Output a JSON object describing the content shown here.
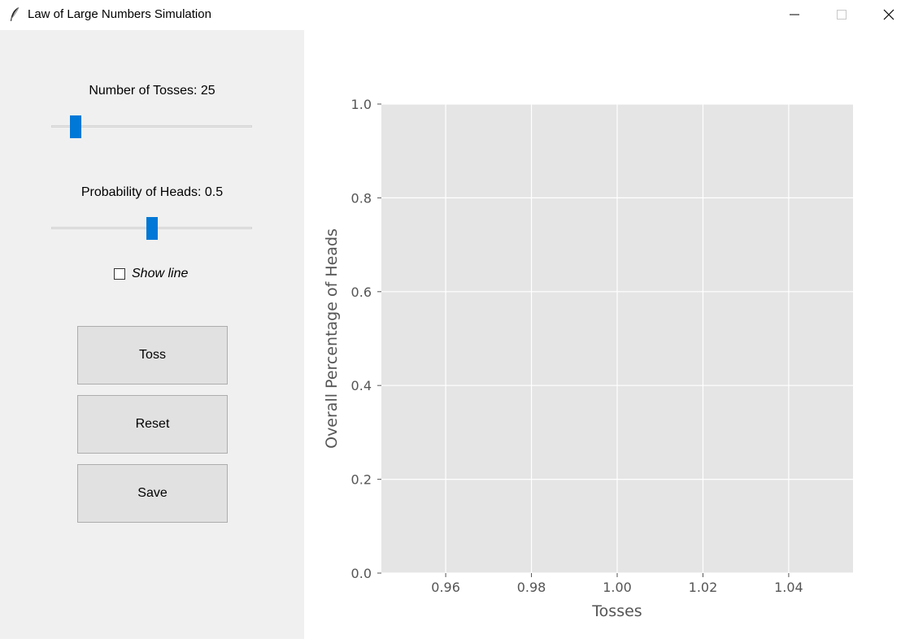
{
  "window": {
    "title": "Law of Large Numbers Simulation",
    "icon": "feather-icon"
  },
  "controls": {
    "tosses_label": "Number of Tosses: 25",
    "tosses_slider_fraction": 0.1,
    "probability_label": "Probability of Heads: 0.5",
    "probability_slider_fraction": 0.5,
    "show_line_label": "Show line",
    "show_line_checked": false,
    "toss_button": "Toss",
    "reset_button": "Reset",
    "save_button": "Save"
  },
  "chart_data": {
    "type": "scatter",
    "xlabel": "Tosses",
    "ylabel": "Overall Percentage of Heads",
    "xlim": [
      0.945,
      1.055
    ],
    "ylim": [
      0.0,
      1.0
    ],
    "xticks": [
      "0.96",
      "0.98",
      "1.00",
      "1.02",
      "1.04"
    ],
    "xtick_values": [
      0.96,
      0.98,
      1.0,
      1.02,
      1.04
    ],
    "yticks": [
      "0.0",
      "0.2",
      "0.4",
      "0.6",
      "0.8",
      "1.0"
    ],
    "ytick_values": [
      0.0,
      0.2,
      0.4,
      0.6,
      0.8,
      1.0
    ],
    "grid": true,
    "series": [],
    "colors": {
      "plot_bg": "#e5e5e5",
      "grid": "#ffffff",
      "text": "#555555",
      "accent": "#0078d7"
    }
  }
}
